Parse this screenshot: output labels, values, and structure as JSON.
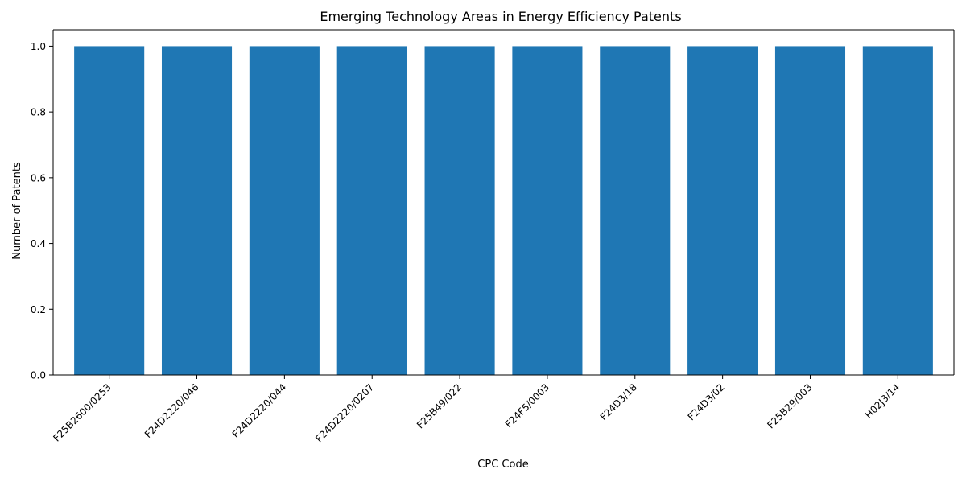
{
  "chart_data": {
    "type": "bar",
    "title": "Emerging Technology Areas in Energy Efficiency Patents",
    "xlabel": "CPC Code",
    "ylabel": "Number of Patents",
    "categories": [
      "F25B2600/0253",
      "F24D2220/046",
      "F24D2220/044",
      "F24D2220/0207",
      "F25B49/022",
      "F24F5/0003",
      "F24D3/18",
      "F24D3/02",
      "F25B29/003",
      "H02J3/14"
    ],
    "values": [
      1,
      1,
      1,
      1,
      1,
      1,
      1,
      1,
      1,
      1
    ],
    "ylim": [
      0,
      1.05
    ],
    "yticks": [
      0.0,
      0.2,
      0.4,
      0.6,
      0.8,
      1.0
    ],
    "ytick_labels": [
      "0.0",
      "0.2",
      "0.4",
      "0.6",
      "0.8",
      "1.0"
    ],
    "bar_color": "#1f77b4",
    "grid": false,
    "legend": "none"
  }
}
